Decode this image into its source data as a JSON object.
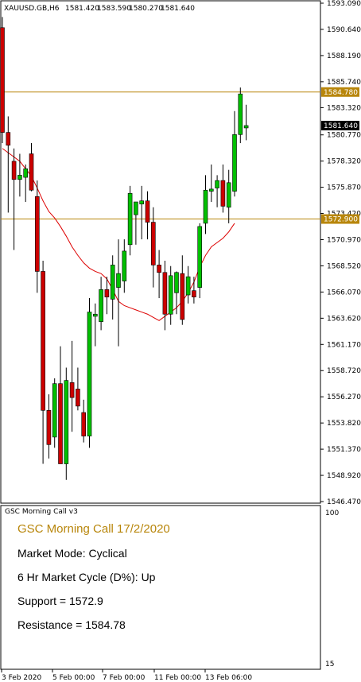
{
  "header": {
    "symbol": "XAUUSD.GB,H6",
    "open": "1581.420",
    "high": "1583.590",
    "low": "1580.270",
    "close": "1581.640"
  },
  "chart_data": {
    "type": "candlestick",
    "ylim": [
      1546.47,
      1593.09
    ],
    "price_ticks": [
      "1593.090",
      "1590.640",
      "1588.190",
      "1585.740",
      "1583.320",
      "1580.770",
      "1578.320",
      "1575.870",
      "1573.420",
      "1570.970",
      "1568.520",
      "1566.070",
      "1563.620",
      "1561.170",
      "1558.720",
      "1556.270",
      "1553.820",
      "1551.370",
      "1548.920",
      "1546.470"
    ],
    "x_labels": [
      "3 Feb 2020",
      "5 Feb 00:00",
      "7 Feb 00:00",
      "11 Feb 00:00",
      "13 Feb 06:00"
    ],
    "current_price": "1581.640",
    "resistance": {
      "value": 1584.78,
      "label": "1584.780"
    },
    "support": {
      "value": 1572.9,
      "label": "1572.900"
    },
    "candles": [
      {
        "o": 1590.8,
        "h": 1591.8,
        "l": 1580.0,
        "c": 1581.0
      },
      {
        "o": 1581.0,
        "h": 1582.5,
        "l": 1573.5,
        "c": 1579.8
      },
      {
        "o": 1578.3,
        "h": 1579.5,
        "l": 1570.0,
        "c": 1576.6
      },
      {
        "o": 1576.6,
        "h": 1579.0,
        "l": 1575.0,
        "c": 1577.0
      },
      {
        "o": 1576.8,
        "h": 1578.0,
        "l": 1574.5,
        "c": 1577.6
      },
      {
        "o": 1579.0,
        "h": 1580.0,
        "l": 1575.5,
        "c": 1575.6
      },
      {
        "o": 1575.0,
        "h": 1576.5,
        "l": 1566.0,
        "c": 1568.0
      },
      {
        "o": 1568.0,
        "h": 1569.0,
        "l": 1550.0,
        "c": 1555.0
      },
      {
        "o": 1555.0,
        "h": 1556.5,
        "l": 1550.5,
        "c": 1551.8
      },
      {
        "o": 1552.5,
        "h": 1558.0,
        "l": 1551.5,
        "c": 1557.5
      },
      {
        "o": 1557.5,
        "h": 1561.0,
        "l": 1550.0,
        "c": 1550.0
      },
      {
        "o": 1550.0,
        "h": 1559.0,
        "l": 1548.5,
        "c": 1557.8
      },
      {
        "o": 1557.6,
        "h": 1561.5,
        "l": 1553.0,
        "c": 1556.2
      },
      {
        "o": 1557.0,
        "h": 1559.0,
        "l": 1555.0,
        "c": 1555.4
      },
      {
        "o": 1554.8,
        "h": 1556.0,
        "l": 1552.0,
        "c": 1552.6
      },
      {
        "o": 1552.6,
        "h": 1565.5,
        "l": 1551.5,
        "c": 1564.2
      },
      {
        "o": 1563.8,
        "h": 1565.0,
        "l": 1561.0,
        "c": 1564.0
      },
      {
        "o": 1563.3,
        "h": 1567.5,
        "l": 1562.5,
        "c": 1566.3
      },
      {
        "o": 1566.3,
        "h": 1567.5,
        "l": 1564.0,
        "c": 1565.6
      },
      {
        "o": 1565.4,
        "h": 1569.5,
        "l": 1563.5,
        "c": 1568.6
      },
      {
        "o": 1566.5,
        "h": 1571.0,
        "l": 1561.0,
        "c": 1567.8
      },
      {
        "o": 1567.1,
        "h": 1571.0,
        "l": 1566.0,
        "c": 1569.9
      },
      {
        "o": 1570.5,
        "h": 1576.0,
        "l": 1569.5,
        "c": 1575.3
      },
      {
        "o": 1573.3,
        "h": 1574.5,
        "l": 1570.5,
        "c": 1574.5
      },
      {
        "o": 1574.3,
        "h": 1576.0,
        "l": 1571.0,
        "c": 1574.6
      },
      {
        "o": 1574.6,
        "h": 1575.5,
        "l": 1571.0,
        "c": 1572.6
      },
      {
        "o": 1572.6,
        "h": 1574.0,
        "l": 1566.5,
        "c": 1568.6
      },
      {
        "o": 1568.6,
        "h": 1570.0,
        "l": 1565.5,
        "c": 1567.9
      },
      {
        "o": 1567.9,
        "h": 1569.0,
        "l": 1562.5,
        "c": 1564.0
      },
      {
        "o": 1564.0,
        "h": 1568.5,
        "l": 1563.0,
        "c": 1567.6
      },
      {
        "o": 1566.0,
        "h": 1568.0,
        "l": 1564.0,
        "c": 1567.9
      },
      {
        "o": 1567.8,
        "h": 1569.5,
        "l": 1563.0,
        "c": 1563.5
      },
      {
        "o": 1565.8,
        "h": 1568.5,
        "l": 1565.0,
        "c": 1567.5
      },
      {
        "o": 1566.2,
        "h": 1567.5,
        "l": 1565.0,
        "c": 1565.6
      },
      {
        "o": 1566.5,
        "h": 1572.5,
        "l": 1565.5,
        "c": 1572.2
      },
      {
        "o": 1572.5,
        "h": 1577.0,
        "l": 1571.5,
        "c": 1575.6
      },
      {
        "o": 1575.5,
        "h": 1578.0,
        "l": 1574.5,
        "c": 1575.7
      },
      {
        "o": 1575.8,
        "h": 1577.0,
        "l": 1574.0,
        "c": 1576.5
      },
      {
        "o": 1576.5,
        "h": 1578.0,
        "l": 1573.5,
        "c": 1574.1
      },
      {
        "o": 1574.0,
        "h": 1577.5,
        "l": 1572.5,
        "c": 1576.3
      },
      {
        "o": 1575.5,
        "h": 1583.0,
        "l": 1575.0,
        "c": 1580.8
      },
      {
        "o": 1580.8,
        "h": 1585.2,
        "l": 1580.0,
        "c": 1584.6
      },
      {
        "o": 1581.42,
        "h": 1583.59,
        "l": 1580.27,
        "c": 1581.64
      }
    ],
    "ma": [
      1579.5,
      1579.1,
      1578.7,
      1578.3,
      1577.6,
      1576.9,
      1575.8,
      1574.6,
      1573.6,
      1573.0,
      1572.2,
      1571.3,
      1570.3,
      1569.5,
      1568.8,
      1568.3,
      1568.0,
      1567.8,
      1567.3,
      1566.3,
      1565.2,
      1564.8,
      1564.6,
      1564.4,
      1564.2,
      1564.0,
      1563.7,
      1563.4,
      1563.8,
      1564.2,
      1564.6,
      1565.2,
      1566.0,
      1567.0,
      1568.4,
      1569.5,
      1570.3,
      1570.7,
      1571.1,
      1571.7,
      1572.5
    ]
  },
  "panel": {
    "indicator_name": "GSC Morning Call v3",
    "title": "GSC Morning Call 17/2/2020",
    "market_mode": "Market Mode: Cyclical",
    "cycle": "6 Hr Market Cycle (D%): Up",
    "support": "Support = 1572.9",
    "resistance": "Resistance = 1584.78",
    "scale_top": "100",
    "scale_bottom": "15"
  },
  "colors": {
    "bull": "#00c000",
    "bear": "#cc0000",
    "level": "#b8860b",
    "ma": "#dd0000"
  }
}
